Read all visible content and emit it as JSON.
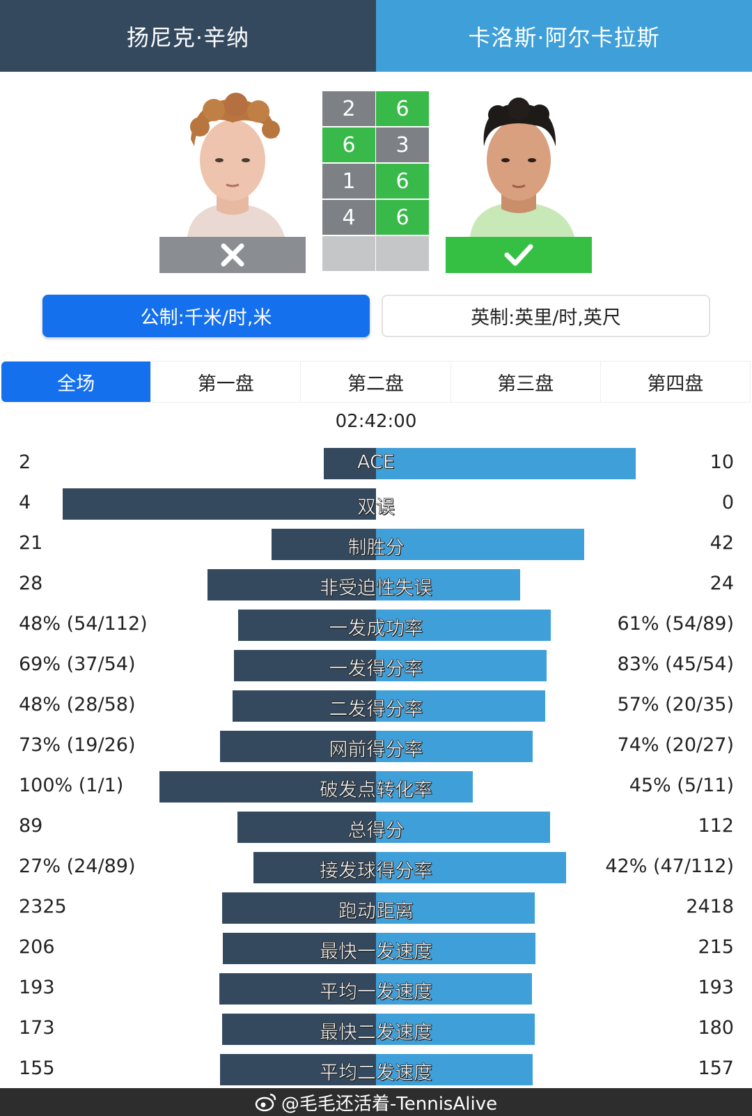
{
  "players": {
    "left": {
      "name": "扬尼克·辛纳",
      "result": "lose"
    },
    "right": {
      "name": "卡洛斯·阿尔卡拉斯",
      "result": "win"
    }
  },
  "colors": {
    "left": "#34495e",
    "right": "#3f9fd8",
    "win": "#38b949",
    "accent": "#1570ee"
  },
  "score": {
    "sets": [
      {
        "left": "2",
        "right": "6",
        "winner": "right"
      },
      {
        "left": "6",
        "right": "3",
        "winner": "left"
      },
      {
        "left": "1",
        "right": "6",
        "winner": "right"
      },
      {
        "left": "4",
        "right": "6",
        "winner": "right"
      },
      {
        "left": "",
        "right": "",
        "winner": "none"
      }
    ]
  },
  "units": {
    "metric": "公制:千米/时,米",
    "imperial": "英制:英里/时,英尺",
    "selected": "metric"
  },
  "tabs": [
    "全场",
    "第一盘",
    "第二盘",
    "第三盘",
    "第四盘"
  ],
  "active_tab": 0,
  "duration": "02:42:00",
  "stats": [
    {
      "name": "ACE",
      "left": "2",
      "right": "10",
      "lshare": 0.167,
      "rshare": 0.833
    },
    {
      "name": "双误",
      "left": "4",
      "right": "0",
      "lshare": 1.0,
      "rshare": 0.0
    },
    {
      "name": "制胜分",
      "left": "21",
      "right": "42",
      "lshare": 0.333,
      "rshare": 0.667
    },
    {
      "name": "非受迫性失误",
      "left": "28",
      "right": "24",
      "lshare": 0.538,
      "rshare": 0.462
    },
    {
      "name": "一发成功率",
      "left": "48% (54/112)",
      "right": "61% (54/89)",
      "lshare": 0.44,
      "rshare": 0.56
    },
    {
      "name": "一发得分率",
      "left": "69% (37/54)",
      "right": "83% (45/54)",
      "lshare": 0.454,
      "rshare": 0.546
    },
    {
      "name": "二发得分率",
      "left": "48% (28/58)",
      "right": "57% (20/35)",
      "lshare": 0.457,
      "rshare": 0.543
    },
    {
      "name": "网前得分率",
      "left": "73% (19/26)",
      "right": "74% (20/27)",
      "lshare": 0.497,
      "rshare": 0.503
    },
    {
      "name": "破发点转化率",
      "left": "100% (1/1)",
      "right": "45% (5/11)",
      "lshare": 0.69,
      "rshare": 0.31
    },
    {
      "name": "总得分",
      "left": "89",
      "right": "112",
      "lshare": 0.443,
      "rshare": 0.557
    },
    {
      "name": "接发球得分率",
      "left": "27% (24/89)",
      "right": "42% (47/112)",
      "lshare": 0.391,
      "rshare": 0.609
    },
    {
      "name": "跑动距离",
      "left": "2325",
      "right": "2418",
      "lshare": 0.49,
      "rshare": 0.51
    },
    {
      "name": "最快一发速度",
      "left": "206",
      "right": "215",
      "lshare": 0.489,
      "rshare": 0.511
    },
    {
      "name": "平均一发速度",
      "left": "193",
      "right": "193",
      "lshare": 0.5,
      "rshare": 0.5
    },
    {
      "name": "最快二发速度",
      "left": "173",
      "right": "180",
      "lshare": 0.49,
      "rshare": 0.51
    },
    {
      "name": "平均二发速度",
      "left": "155",
      "right": "157",
      "lshare": 0.497,
      "rshare": 0.503
    }
  ],
  "watermark": "@毛毛还活着-TennisAlive",
  "icons": {
    "lose": "cross-icon",
    "win": "check-icon",
    "watermark": "weibo-icon"
  }
}
